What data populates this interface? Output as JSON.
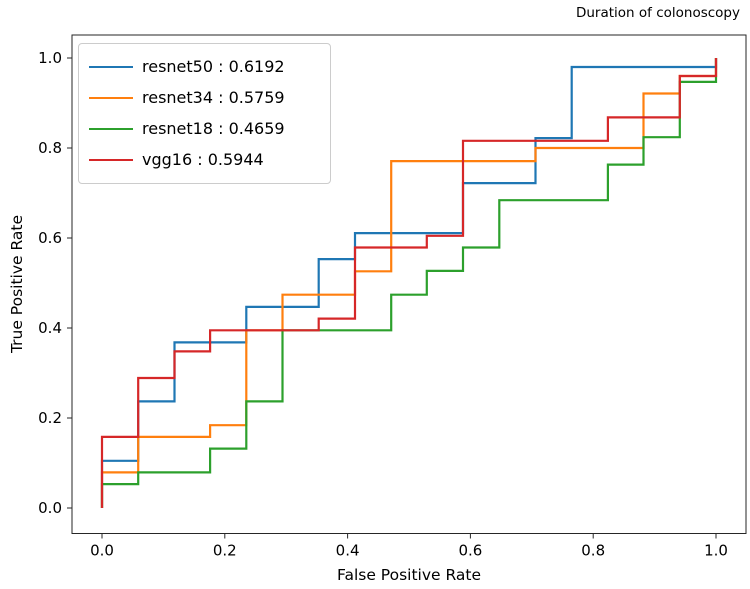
{
  "title": "Duration of colonoscopy",
  "axes": {
    "x_label": "False Positive Rate",
    "y_label": "True Positive Rate",
    "x_ticks": [
      "0.0",
      "0.2",
      "0.4",
      "0.6",
      "0.8",
      "1.0"
    ],
    "y_ticks": [
      "0.0",
      "0.2",
      "0.4",
      "0.6",
      "0.8",
      "1.0"
    ]
  },
  "legend": {
    "items": [
      {
        "model": "resnet50",
        "auc": "0.6192",
        "color": "#1f77b4",
        "text": "resnet50 : 0.6192"
      },
      {
        "model": "resnet34",
        "auc": "0.5759",
        "color": "#ff7f0e",
        "text": "resnet34 : 0.5759"
      },
      {
        "model": "resnet18",
        "auc": "0.4659",
        "color": "#2ca02c",
        "text": "resnet18 : 0.4659"
      },
      {
        "model": "vgg16",
        "auc": "0.5944",
        "color": "#d62728",
        "text": "vgg16 : 0.5944"
      }
    ]
  },
  "chart_data": {
    "type": "line",
    "subtype": "roc-step-curves",
    "title": "Duration of colonoscopy",
    "xlabel": "False Positive Rate",
    "ylabel": "True Positive Rate",
    "xlim": [
      -0.05,
      1.05
    ],
    "ylim": [
      -0.05,
      1.05
    ],
    "x_tick_values": [
      0.0,
      0.2,
      0.4,
      0.6,
      0.8,
      1.0
    ],
    "y_tick_values": [
      0.0,
      0.2,
      0.4,
      0.6,
      0.8,
      1.0
    ],
    "grid": false,
    "legend_position": "upper left",
    "series": [
      {
        "name": "resnet50",
        "auc": 0.6192,
        "color": "#1f77b4",
        "points": [
          [
            0,
            0
          ],
          [
            0,
            0.105
          ],
          [
            0.059,
            0.105
          ],
          [
            0.059,
            0.237
          ],
          [
            0.118,
            0.237
          ],
          [
            0.118,
            0.368
          ],
          [
            0.235,
            0.368
          ],
          [
            0.235,
            0.447
          ],
          [
            0.353,
            0.447
          ],
          [
            0.353,
            0.553
          ],
          [
            0.412,
            0.553
          ],
          [
            0.412,
            0.611
          ],
          [
            0.588,
            0.611
          ],
          [
            0.588,
            0.722
          ],
          [
            0.706,
            0.722
          ],
          [
            0.706,
            0.822
          ],
          [
            0.765,
            0.822
          ],
          [
            0.765,
            0.98
          ],
          [
            1,
            0.98
          ],
          [
            1,
            1
          ]
        ]
      },
      {
        "name": "resnet34",
        "auc": 0.5759,
        "color": "#ff7f0e",
        "points": [
          [
            0,
            0
          ],
          [
            0,
            0.079
          ],
          [
            0.059,
            0.079
          ],
          [
            0.059,
            0.158
          ],
          [
            0.176,
            0.158
          ],
          [
            0.176,
            0.184
          ],
          [
            0.235,
            0.184
          ],
          [
            0.235,
            0.395
          ],
          [
            0.294,
            0.395
          ],
          [
            0.294,
            0.474
          ],
          [
            0.412,
            0.474
          ],
          [
            0.412,
            0.526
          ],
          [
            0.471,
            0.526
          ],
          [
            0.471,
            0.771
          ],
          [
            0.706,
            0.771
          ],
          [
            0.706,
            0.8
          ],
          [
            0.882,
            0.8
          ],
          [
            0.882,
            0.921
          ],
          [
            0.941,
            0.921
          ],
          [
            0.941,
            0.96
          ],
          [
            1,
            0.96
          ],
          [
            1,
            1
          ]
        ]
      },
      {
        "name": "resnet18",
        "auc": 0.4659,
        "color": "#2ca02c",
        "points": [
          [
            0,
            0
          ],
          [
            0,
            0.053
          ],
          [
            0.059,
            0.053
          ],
          [
            0.059,
            0.079
          ],
          [
            0.176,
            0.079
          ],
          [
            0.176,
            0.132
          ],
          [
            0.235,
            0.132
          ],
          [
            0.235,
            0.237
          ],
          [
            0.294,
            0.237
          ],
          [
            0.294,
            0.395
          ],
          [
            0.471,
            0.395
          ],
          [
            0.471,
            0.474
          ],
          [
            0.529,
            0.474
          ],
          [
            0.529,
            0.527
          ],
          [
            0.588,
            0.527
          ],
          [
            0.588,
            0.579
          ],
          [
            0.647,
            0.579
          ],
          [
            0.647,
            0.684
          ],
          [
            0.824,
            0.684
          ],
          [
            0.824,
            0.763
          ],
          [
            0.882,
            0.763
          ],
          [
            0.882,
            0.824
          ],
          [
            0.941,
            0.824
          ],
          [
            0.941,
            0.947
          ],
          [
            1,
            0.947
          ],
          [
            1,
            1
          ]
        ]
      },
      {
        "name": "vgg16",
        "auc": 0.5944,
        "color": "#d62728",
        "points": [
          [
            0,
            0
          ],
          [
            0,
            0.158
          ],
          [
            0.059,
            0.158
          ],
          [
            0.059,
            0.289
          ],
          [
            0.118,
            0.289
          ],
          [
            0.118,
            0.348
          ],
          [
            0.176,
            0.348
          ],
          [
            0.176,
            0.395
          ],
          [
            0.353,
            0.395
          ],
          [
            0.353,
            0.421
          ],
          [
            0.412,
            0.421
          ],
          [
            0.412,
            0.579
          ],
          [
            0.529,
            0.579
          ],
          [
            0.529,
            0.605
          ],
          [
            0.588,
            0.605
          ],
          [
            0.588,
            0.816
          ],
          [
            0.824,
            0.816
          ],
          [
            0.824,
            0.868
          ],
          [
            0.941,
            0.868
          ],
          [
            0.941,
            0.96
          ],
          [
            1,
            0.96
          ],
          [
            1,
            1
          ]
        ]
      }
    ]
  }
}
